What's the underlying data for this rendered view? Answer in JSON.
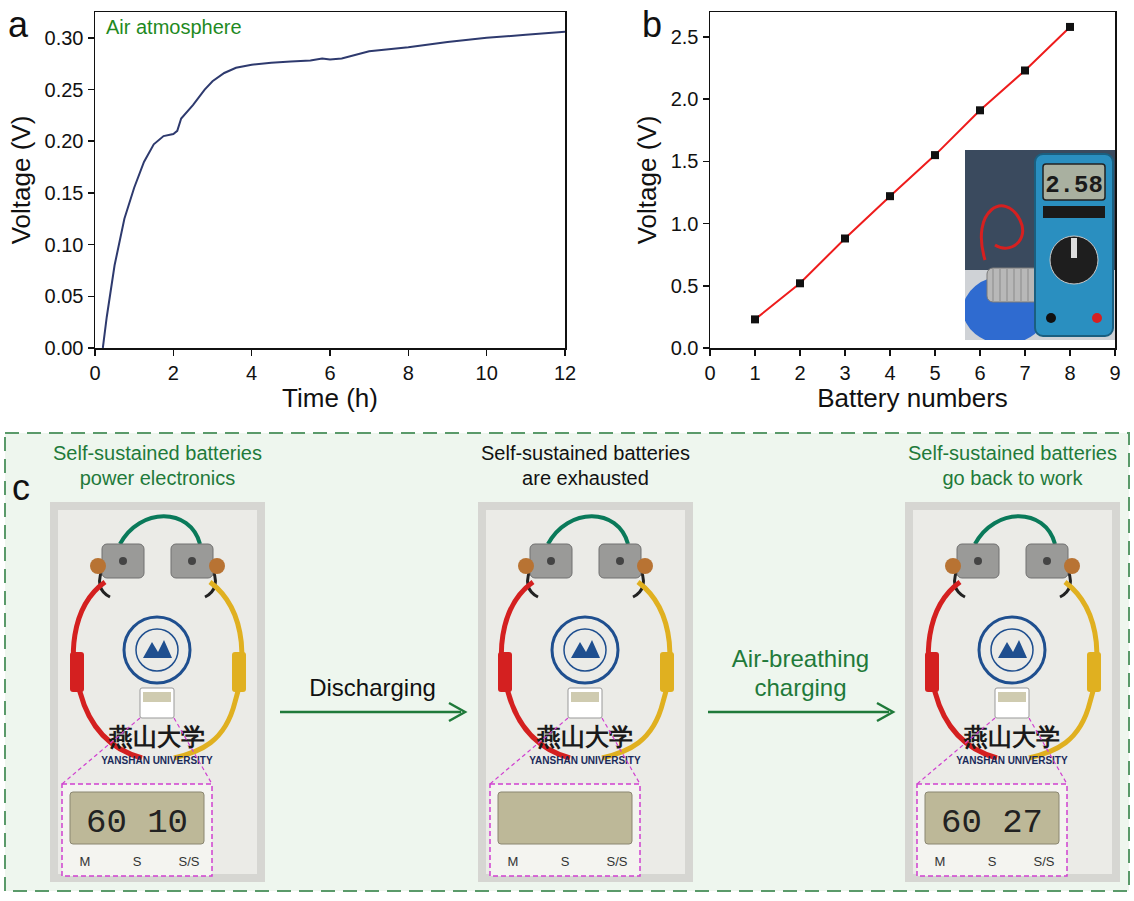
{
  "chart_data": [
    {
      "panel_label": "a",
      "type": "line",
      "x": [
        0.2,
        0.3,
        0.5,
        0.75,
        1,
        1.25,
        1.5,
        1.75,
        2,
        2.1,
        2.2,
        2.5,
        2.8,
        3,
        3.3,
        3.6,
        4,
        4.5,
        5,
        5.5,
        5.8,
        6,
        6.3,
        6.7,
        7,
        7.5,
        8,
        9,
        10,
        11,
        12
      ],
      "values": [
        0,
        0.03,
        0.08,
        0.125,
        0.155,
        0.18,
        0.197,
        0.205,
        0.207,
        0.21,
        0.222,
        0.235,
        0.25,
        0.258,
        0.266,
        0.271,
        0.274,
        0.276,
        0.277,
        0.278,
        0.28,
        0.279,
        0.28,
        0.284,
        0.287,
        0.289,
        0.291,
        0.296,
        0.3,
        0.303,
        0.306
      ],
      "color": "#2e3a6e",
      "xlabel": "Time (h)",
      "ylabel": "Voltage (V)",
      "xlim": [
        0,
        12
      ],
      "xticks": [
        0,
        2,
        4,
        6,
        8,
        10,
        12
      ],
      "ylim": [
        0,
        0.325
      ],
      "yticks": [
        {
          "value": 0,
          "label": "0.00"
        },
        {
          "value": 0.05,
          "label": "0.05"
        },
        {
          "value": 0.1,
          "label": "0.10"
        },
        {
          "value": 0.15,
          "label": "0.15"
        },
        {
          "value": 0.2,
          "label": "0.20"
        },
        {
          "value": 0.25,
          "label": "0.25"
        },
        {
          "value": 0.3,
          "label": "0.30"
        }
      ],
      "annotations": [
        {
          "text": "Air atmosphere",
          "color": "#1f8a1f"
        }
      ],
      "grid": false
    },
    {
      "panel_label": "b",
      "type": "line",
      "marker": "square",
      "x": [
        1,
        2,
        3,
        4,
        5,
        6,
        7,
        8
      ],
      "values": [
        0.23,
        0.52,
        0.88,
        1.22,
        1.55,
        1.91,
        2.23,
        2.58
      ],
      "color": "#ee1c1c",
      "xlabel": "Battery numbers",
      "ylabel": "Voltage (V)",
      "xlim": [
        0,
        9
      ],
      "xticks": [
        0,
        1,
        2,
        3,
        4,
        5,
        6,
        7,
        8,
        9
      ],
      "ylim": [
        0,
        2.7
      ],
      "yticks": [
        {
          "value": 0,
          "label": "0.0"
        },
        {
          "value": 0.5,
          "label": "0.5"
        },
        {
          "value": 1,
          "label": "1.0"
        },
        {
          "value": 1.5,
          "label": "1.5"
        },
        {
          "value": 2,
          "label": "2.0"
        },
        {
          "value": 2.5,
          "label": "2.5"
        }
      ],
      "inset": {
        "display": "2.58"
      },
      "grid": false
    }
  ],
  "diagram": {
    "panel_label": "c",
    "steps": [
      {
        "caption": "Self-sustained batteries power electronics",
        "color": "#1f7a3a",
        "photo": {
          "display": "60 10",
          "buttons": [
            "M",
            "S",
            "S/S"
          ],
          "logo_cn": "燕山大学",
          "logo_en": "YANSHAN UNIVERSITY"
        }
      },
      {
        "caption": "Self-sustained batteries are exhausted",
        "color": "#111111",
        "photo": {
          "buttons": [
            "M",
            "S",
            "S/S"
          ],
          "logo_cn": "燕山大学",
          "logo_en": "YANSHAN UNIVERSITY"
        }
      },
      {
        "caption": "Self-sustained batteries go back to work",
        "color": "#1f7a3a",
        "photo": {
          "display": "60 27",
          "buttons": [
            "M",
            "S",
            "S/S"
          ],
          "logo_cn": "燕山大学",
          "logo_en": "YANSHAN UNIVERSITY"
        }
      }
    ],
    "arrows": [
      {
        "label": "Discharging",
        "color": "#111111"
      },
      {
        "label": "Air-breathing charging",
        "color": "#1f7a3a"
      }
    ]
  }
}
